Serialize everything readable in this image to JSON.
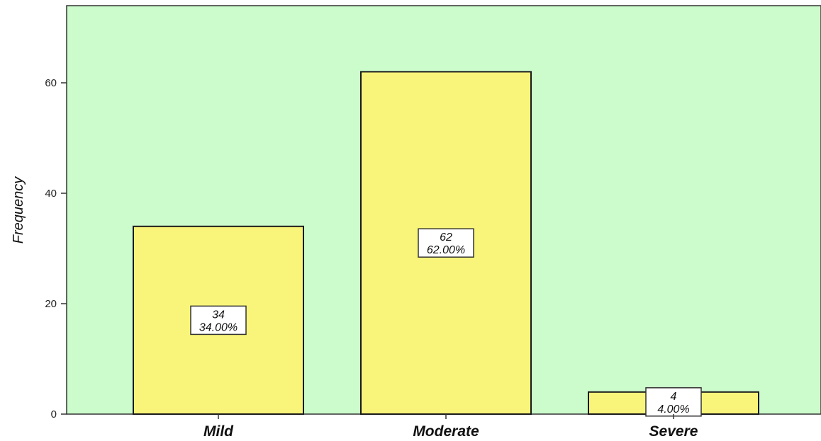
{
  "chart_data": {
    "type": "bar",
    "title": "",
    "xlabel": "",
    "ylabel": "Frequency",
    "categories": [
      "Mild",
      "Moderate",
      "Severe"
    ],
    "values": [
      34,
      62,
      4
    ],
    "data_labels": [
      {
        "count": "34",
        "percent": "34.00%"
      },
      {
        "count": "62",
        "percent": "62.00%"
      },
      {
        "count": "4",
        "percent": "4.00%"
      }
    ],
    "yticks": [
      0,
      20,
      40,
      60
    ],
    "ylim": [
      0,
      74
    ],
    "grid": false,
    "legend": "none",
    "colors": {
      "plot_background": "#ccfccc",
      "bar_fill": "#f8f57a",
      "bar_stroke": "#1a1a1a",
      "axis": "#333333"
    }
  }
}
